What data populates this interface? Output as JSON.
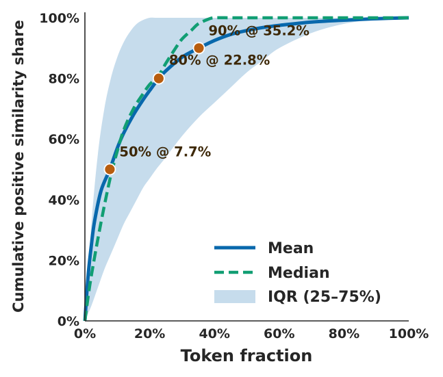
{
  "chart_data": {
    "type": "line",
    "title": "",
    "xlabel": "Token fraction",
    "ylabel": "Cumulative positive similarity share",
    "xlim": [
      0,
      100
    ],
    "ylim": [
      0,
      100
    ],
    "x_ticks": [
      "0%",
      "20%",
      "40%",
      "60%",
      "80%",
      "100%"
    ],
    "y_ticks": [
      "0%",
      "20%",
      "40%",
      "60%",
      "80%",
      "100%"
    ],
    "grid": false,
    "legend_position": "bottom-right",
    "colors": {
      "mean": "#0868ac",
      "median": "#119e73",
      "iqr": "#c6dcec",
      "marker": "#b85d0e",
      "annotation": "#3d2808"
    },
    "series": [
      {
        "name": "Mean",
        "style": "solid",
        "x": [
          0,
          1,
          2,
          3,
          5,
          7.7,
          10,
          12,
          15,
          18,
          20,
          22.8,
          25,
          30,
          35.2,
          40,
          45,
          50,
          55,
          60,
          70,
          80,
          90,
          100
        ],
        "y": [
          0,
          15,
          25,
          33,
          43,
          50,
          57,
          62,
          68,
          73,
          76,
          80,
          82.5,
          87,
          90,
          92.5,
          94.5,
          95.8,
          96.8,
          97.5,
          98.6,
          99.2,
          99.7,
          100
        ]
      },
      {
        "name": "Median",
        "style": "dashed",
        "x": [
          0,
          1,
          2,
          4,
          6,
          8,
          10,
          12,
          15,
          18,
          20,
          22.8,
          25,
          28,
          30,
          33,
          35,
          38,
          40,
          45,
          50,
          60,
          70,
          80,
          90,
          100
        ],
        "y": [
          0,
          8,
          15,
          27,
          38,
          48,
          56,
          63,
          70,
          75,
          78,
          81,
          85,
          90,
          93,
          96,
          98,
          99.5,
          100,
          100,
          100,
          100,
          100,
          100,
          100,
          100
        ]
      },
      {
        "name": "IQR (25–75%)",
        "style": "band",
        "x": [
          0,
          2,
          4,
          6,
          8,
          10,
          12,
          14,
          16,
          18,
          20,
          22,
          25,
          30,
          35,
          40,
          45,
          50,
          55,
          60,
          70,
          80,
          90,
          100
        ],
        "lower": [
          0,
          5,
          11,
          17,
          22,
          27,
          32,
          36,
          40,
          44,
          47,
          50,
          54,
          61,
          67,
          72,
          77,
          82,
          86,
          90,
          95,
          98,
          99.5,
          100
        ],
        "upper": [
          0,
          32,
          55,
          70,
          80,
          87,
          92,
          95.5,
          98,
          99.3,
          100,
          100,
          100,
          100,
          100,
          100,
          100,
          100,
          100,
          100,
          100,
          100,
          100,
          100
        ]
      }
    ],
    "annotations": [
      {
        "text": "50% @ 7.7%",
        "x": 7.7,
        "y": 50
      },
      {
        "text": "80% @ 22.8%",
        "x": 22.8,
        "y": 80
      },
      {
        "text": "90% @ 35.2%",
        "x": 35.2,
        "y": 90
      }
    ]
  }
}
